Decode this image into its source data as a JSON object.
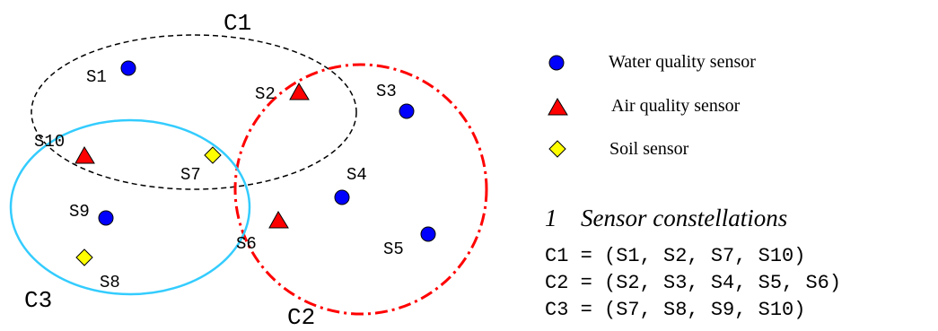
{
  "colors": {
    "water": "#0000ff",
    "air": "#ff0000",
    "soil": "#ffff00",
    "c1_stroke": "#000000",
    "c2_stroke": "#ff0000",
    "c3_stroke": "#33ccff"
  },
  "clusters": {
    "c1": {
      "label": "C1",
      "line_style": "dashed"
    },
    "c2": {
      "label": "C2",
      "line_style": "dash-dot"
    },
    "c3": {
      "label": "C3",
      "line_style": "solid"
    }
  },
  "sensors": [
    {
      "id": "s1",
      "label": "S1",
      "type": "water"
    },
    {
      "id": "s2",
      "label": "S2",
      "type": "air"
    },
    {
      "id": "s3",
      "label": "S3",
      "type": "water"
    },
    {
      "id": "s4",
      "label": "S4",
      "type": "water"
    },
    {
      "id": "s5",
      "label": "S5",
      "type": "water"
    },
    {
      "id": "s6",
      "label": "S6",
      "type": "air"
    },
    {
      "id": "s7",
      "label": "S7",
      "type": "soil"
    },
    {
      "id": "s8",
      "label": "S8",
      "type": "soil"
    },
    {
      "id": "s9",
      "label": "S9",
      "type": "water"
    },
    {
      "id": "s10",
      "label": "S10",
      "type": "air"
    }
  ],
  "legend": {
    "water": "Water quality sensor",
    "air": "Air quality sensor",
    "soil": "Soil sensor"
  },
  "constellations": {
    "number": "1",
    "title": "Sensor constellations",
    "lines": [
      "C1 = (S1, S2, S7, S10)",
      "C2 = (S2, S3, S4, S5, S6)",
      "C3 = (S7, S8, S9, S10)"
    ]
  }
}
